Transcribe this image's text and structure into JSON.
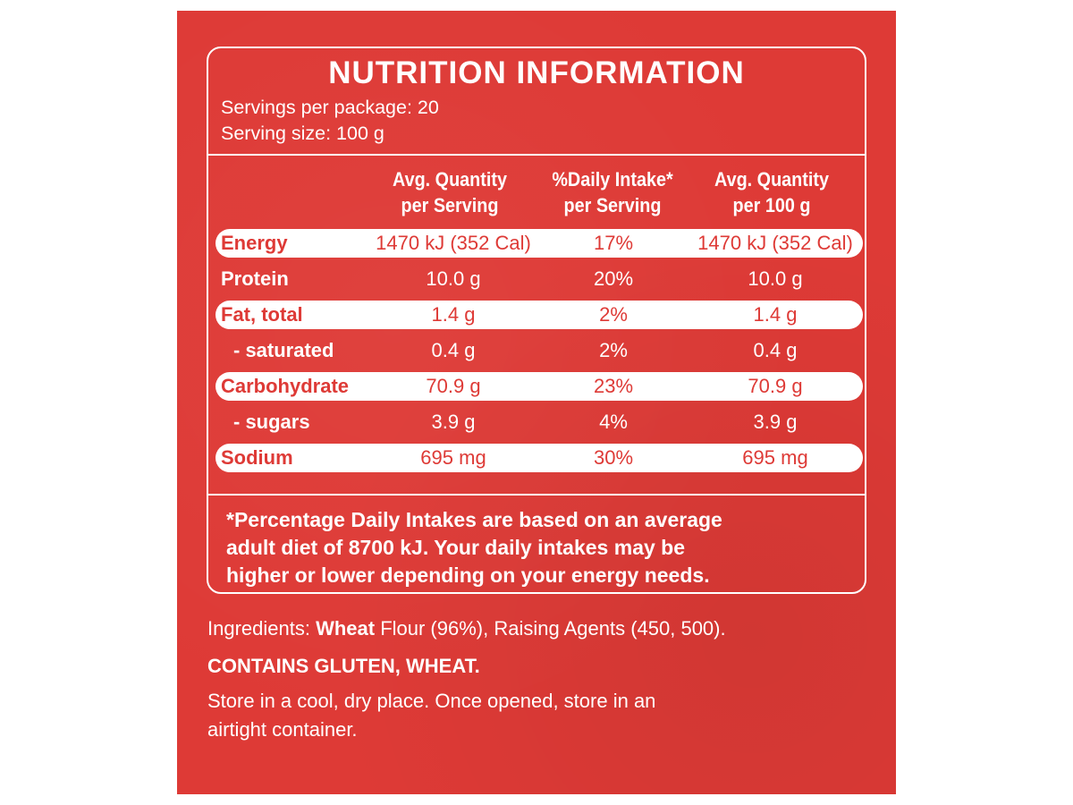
{
  "colors": {
    "label_red": "#de3a36",
    "text": "#ffffff"
  },
  "panel": {
    "title": "NUTRITION INFORMATION",
    "servings_per_package": "Servings per package: 20",
    "serving_size": "Serving size: 100 g",
    "headers": {
      "col1": [
        "Avg. Quantity",
        "per Serving"
      ],
      "col2": [
        "%Daily Intake*",
        "per Serving"
      ],
      "col3": [
        "Avg. Quantity",
        "per 100 g"
      ]
    },
    "rows": [
      {
        "name": "Energy",
        "per_serving": "1470 kJ (352 Cal)",
        "daily_intake": "17%",
        "per_100g": "1470 kJ (352 Cal)"
      },
      {
        "name": "Protein",
        "per_serving": "10.0 g",
        "daily_intake": "20%",
        "per_100g": "10.0 g"
      },
      {
        "name": "Fat, total",
        "per_serving": "1.4 g",
        "daily_intake": "2%",
        "per_100g": "1.4 g"
      },
      {
        "name": "- saturated",
        "per_serving": "0.4 g",
        "daily_intake": "2%",
        "per_100g": "0.4 g"
      },
      {
        "name": "Carbohydrate",
        "per_serving": "70.9 g",
        "daily_intake": "23%",
        "per_100g": "70.9 g"
      },
      {
        "name": "- sugars",
        "per_serving": "3.9 g",
        "daily_intake": "4%",
        "per_100g": "3.9 g"
      },
      {
        "name": "Sodium",
        "per_serving": "695 mg",
        "daily_intake": "30%",
        "per_100g": "695 mg"
      }
    ],
    "footnote": [
      "*Percentage Daily Intakes are based on an average",
      "adult diet of 8700 kJ. Your daily intakes may be",
      "higher or lower depending on your energy needs."
    ]
  },
  "ingredients": {
    "prefix": "Ingredients: ",
    "bold_word": "Wheat",
    "rest": " Flour (96%), Raising Agents (450, 500)."
  },
  "allergens": "CONTAINS GLUTEN, WHEAT.",
  "storage": [
    "Store in a cool, dry place. Once opened, store in an",
    "airtight container."
  ]
}
